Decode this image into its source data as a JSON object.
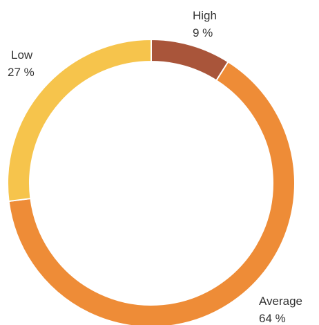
{
  "chart_data": {
    "type": "pie",
    "variant": "donut",
    "slices": [
      {
        "label": "High",
        "value": 9,
        "value_label": "9 %",
        "color": "#A9553A"
      },
      {
        "label": "Average",
        "value": 64,
        "value_label": "64 %",
        "color": "#EE8C37"
      },
      {
        "label": "Low",
        "value": 27,
        "value_label": "27 %",
        "color": "#F6C44C"
      }
    ],
    "start_angle_deg": 0,
    "direction": "clockwise",
    "legend": "none"
  }
}
